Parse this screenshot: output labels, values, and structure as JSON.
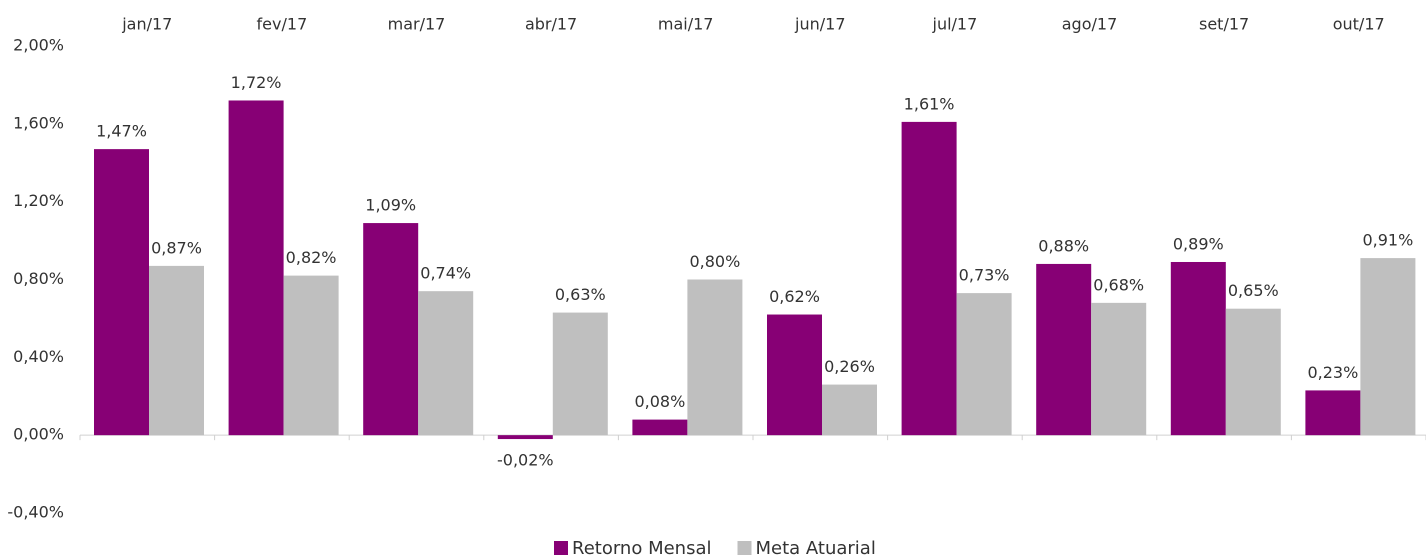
{
  "chart_data": {
    "type": "bar",
    "categories": [
      "jan/17",
      "fev/17",
      "mar/17",
      "abr/17",
      "mai/17",
      "jun/17",
      "jul/17",
      "ago/17",
      "set/17",
      "out/17"
    ],
    "series": [
      {
        "name": "Retorno Mensal",
        "color": "#870075",
        "values": [
          1.47,
          1.72,
          1.09,
          -0.02,
          0.08,
          0.62,
          1.61,
          0.88,
          0.89,
          0.23
        ],
        "value_labels": [
          "1,47%",
          "1,72%",
          "1,09%",
          "-0,02%",
          "0,08%",
          "0,62%",
          "1,61%",
          "0,88%",
          "0,89%",
          "0,23%"
        ]
      },
      {
        "name": "Meta Atuarial",
        "color": "#bfbfbf",
        "values": [
          0.87,
          0.82,
          0.74,
          0.63,
          0.8,
          0.26,
          0.73,
          0.68,
          0.65,
          0.91
        ],
        "value_labels": [
          "0,87%",
          "0,82%",
          "0,74%",
          "0,63%",
          "0,80%",
          "0,26%",
          "0,73%",
          "0,68%",
          "0,65%",
          "0,91%"
        ]
      }
    ],
    "ylim": [
      -0.4,
      2.0
    ],
    "yticks": [
      {
        "value": -0.4,
        "label": "-0,40%"
      },
      {
        "value": 0,
        "label": "0,00%"
      },
      {
        "value": 0.4,
        "label": "0,40%"
      },
      {
        "value": 0.8,
        "label": "0,80%"
      },
      {
        "value": 1.2,
        "label": "1,20%"
      },
      {
        "value": 1.6,
        "label": "1,60%"
      },
      {
        "value": 2.0,
        "label": "2,00%"
      }
    ],
    "grid": false,
    "legend": "bottom"
  }
}
